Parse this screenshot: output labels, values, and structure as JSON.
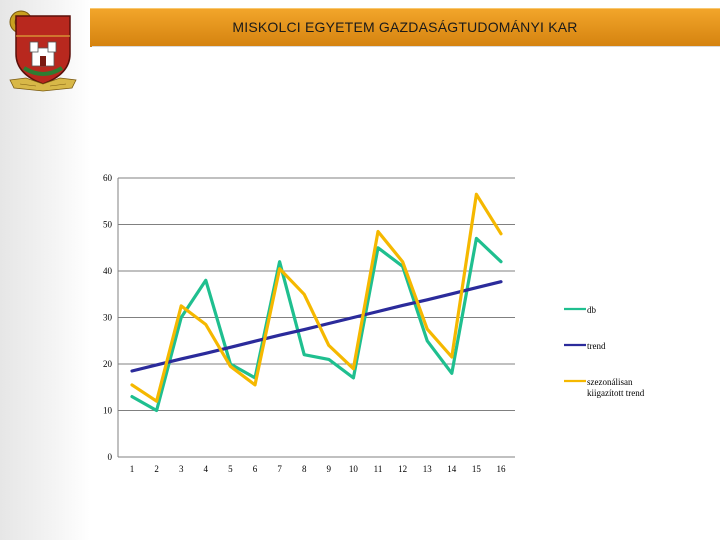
{
  "header": {
    "title": "MISKOLCI EGYETEM GAZDASÁGTUDOMÁNYI KAR"
  },
  "logo": {
    "icon": "university-crest-icon"
  },
  "colors": {
    "header_orange": "#e8961c",
    "db": "#1fbf8f",
    "trend": "#2b2b9b",
    "seasonal": "#f5b800"
  },
  "chart_data": {
    "type": "line",
    "x": [
      1,
      2,
      3,
      4,
      5,
      6,
      7,
      8,
      9,
      10,
      11,
      12,
      13,
      14,
      15,
      16
    ],
    "ylim": [
      0,
      60
    ],
    "yticks": [
      0,
      10,
      20,
      30,
      40,
      50,
      60
    ],
    "grid": "horizontal",
    "legend_position": "right",
    "series": [
      {
        "name": "db",
        "color": "#1fbf8f",
        "values": [
          13,
          10,
          30,
          38,
          20,
          17,
          42,
          22,
          21,
          17,
          45,
          41,
          25,
          18,
          47,
          42
        ]
      },
      {
        "name": "trend",
        "color": "#2b2b9b",
        "values": [
          18.5,
          19.8,
          21.1,
          22.3,
          23.6,
          24.9,
          26.2,
          27.4,
          28.7,
          30.0,
          31.3,
          32.6,
          33.8,
          35.1,
          36.4,
          37.7
        ]
      },
      {
        "name": "szezonálisan kiigazított trend",
        "color": "#f5b800",
        "values": [
          15.5,
          12,
          32.5,
          28.5,
          19.5,
          15.5,
          40.5,
          35,
          24,
          19,
          48.5,
          42,
          27.5,
          21.5,
          56.5,
          48
        ]
      }
    ]
  }
}
